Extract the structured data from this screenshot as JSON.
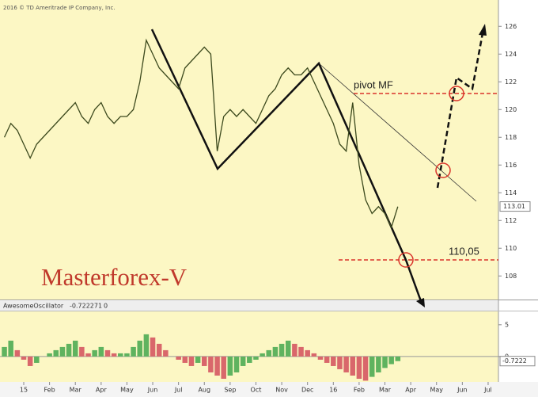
{
  "chart_data": [
    {
      "type": "line",
      "title": "Masterforex-V",
      "copyright": "2016 © TD Ameritrade IP Company, Inc.",
      "annotations": [
        "pivot MF",
        "110,05"
      ],
      "color": "#3d4a1e",
      "last_price": 113.01,
      "x": [
        -0.75,
        -0.5,
        -0.25,
        0,
        0.25,
        0.5,
        0.75,
        1,
        1.25,
        1.5,
        1.75,
        2,
        2.25,
        2.5,
        2.75,
        3,
        3.25,
        3.5,
        3.75,
        4,
        4.25,
        4.5,
        4.75,
        5,
        5.25,
        5.5,
        5.75,
        6,
        6.25,
        6.5,
        6.75,
        7,
        7.25,
        7.5,
        7.75,
        8,
        8.25,
        8.5,
        8.75,
        9,
        9.25,
        9.5,
        9.75,
        10,
        10.25,
        10.5,
        10.75,
        11,
        11.25,
        11.5,
        11.75,
        12,
        12.25,
        12.5,
        12.75,
        13,
        13.25,
        13.5,
        13.75,
        14,
        14.25,
        14.5
      ],
      "values": [
        118,
        119,
        118.5,
        117.5,
        116.5,
        117.5,
        118,
        118.5,
        119,
        119.5,
        120,
        120.5,
        119.5,
        119,
        120,
        120.5,
        119.5,
        119,
        119.5,
        119.5,
        120,
        122,
        125,
        124,
        123,
        122.5,
        122,
        121.5,
        123,
        123.5,
        124,
        124.5,
        124,
        117,
        119.5,
        120,
        119.5,
        120,
        119.5,
        119,
        120,
        121,
        121.5,
        122.5,
        123,
        122.5,
        122.5,
        123,
        122,
        121,
        120,
        119,
        117.5,
        117,
        120.5,
        116,
        113.5,
        112.5,
        113,
        112.5,
        111.5,
        113
      ],
      "xlim": [
        -0.92,
        18.4
      ],
      "xticks": [
        {
          "value": 0,
          "label": "15"
        },
        {
          "value": 1,
          "label": "Feb"
        },
        {
          "value": 2,
          "label": "Mar"
        },
        {
          "value": 3,
          "label": "Apr"
        },
        {
          "value": 4,
          "label": "May"
        },
        {
          "value": 5,
          "label": "Jun"
        },
        {
          "value": 6,
          "label": "Jul"
        },
        {
          "value": 7,
          "label": "Aug"
        },
        {
          "value": 8,
          "label": "Sep"
        },
        {
          "value": 9,
          "label": "Oct"
        },
        {
          "value": 10,
          "label": "Nov"
        },
        {
          "value": 11,
          "label": "Dec"
        },
        {
          "value": 12,
          "label": "16"
        },
        {
          "value": 13,
          "label": "Feb"
        },
        {
          "value": 14,
          "label": "Mar"
        },
        {
          "value": 15,
          "label": "Apr"
        },
        {
          "value": 16,
          "label": "May"
        },
        {
          "value": 17,
          "label": "Jun"
        },
        {
          "value": 18,
          "label": "Jul"
        }
      ],
      "ylim": [
        106.3,
        127.9
      ],
      "yticks": [
        108,
        110,
        112,
        114,
        116,
        118,
        120,
        122,
        124,
        126
      ]
    },
    {
      "type": "bar",
      "title": "AwesomeOscillator",
      "last_value": -0.722271,
      "header_extra": "0",
      "last_marker": {
        "value": -0.722271,
        "label": "-0.7222"
      },
      "up_color": "#5fb35f",
      "down_color": "#d9676b",
      "x": [
        -0.75,
        -0.5,
        -0.25,
        0,
        0.25,
        0.5,
        0.75,
        1,
        1.25,
        1.5,
        1.75,
        2,
        2.25,
        2.5,
        2.75,
        3,
        3.25,
        3.5,
        3.75,
        4,
        4.25,
        4.5,
        4.75,
        5,
        5.25,
        5.5,
        5.75,
        6,
        6.25,
        6.5,
        6.75,
        7,
        7.25,
        7.5,
        7.75,
        8,
        8.25,
        8.5,
        8.75,
        9,
        9.25,
        9.5,
        9.75,
        10,
        10.25,
        10.5,
        10.75,
        11,
        11.25,
        11.5,
        11.75,
        12,
        12.25,
        12.5,
        12.75,
        13,
        13.25,
        13.5,
        13.75,
        14,
        14.25,
        14.5
      ],
      "values": [
        1.5,
        2.5,
        1,
        -0.5,
        -1.5,
        -1,
        0,
        0.5,
        1,
        1.5,
        2,
        2.5,
        1.5,
        0.5,
        1,
        1.5,
        1,
        0.5,
        0.5,
        0.5,
        1.5,
        2.5,
        3.5,
        3,
        2,
        1,
        0,
        -0.5,
        -1,
        -1.5,
        -1,
        -1.5,
        -2.5,
        -3,
        -3.5,
        -3,
        -2.5,
        -1.5,
        -1,
        -0.5,
        0.5,
        1,
        1.5,
        2,
        2.5,
        2,
        1.5,
        1,
        0.5,
        -0.5,
        -1,
        -1.5,
        -2,
        -2.5,
        -3,
        -3.5,
        -3.8,
        -3.2,
        -2.5,
        -1.8,
        -1.2,
        -0.722271
      ],
      "ylim": [
        -4,
        7.1
      ],
      "yticks": [
        0,
        5
      ]
    }
  ]
}
